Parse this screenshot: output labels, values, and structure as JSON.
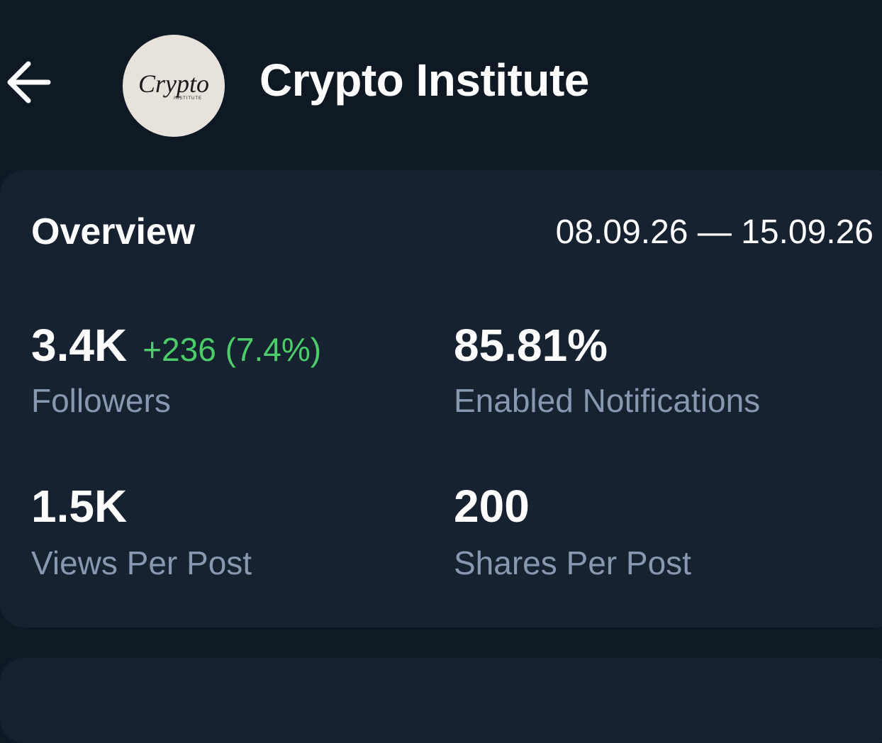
{
  "header": {
    "title": "Crypto Institute",
    "logo": {
      "text": "Crypto",
      "subtext": "INSTITUTE"
    }
  },
  "overview": {
    "title": "Overview",
    "date_range": "08.09.26 — 15.09.26",
    "stats": [
      {
        "value": "3.4K",
        "change": "+236 (7.4%)",
        "label": "Followers"
      },
      {
        "value": "85.81%",
        "label": "Enabled Notifications"
      },
      {
        "value": "1.5K",
        "label": "Views Per Post"
      },
      {
        "value": "200",
        "label": "Shares Per Post"
      }
    ]
  }
}
